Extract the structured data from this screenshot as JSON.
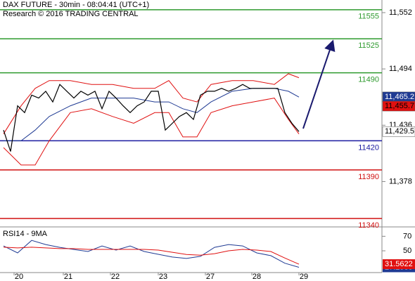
{
  "chart_data": {
    "type": "line",
    "title": "DAX FUTURE - 30min - 08:04:41 (UTC+1)",
    "subtitle": "Research © 2016 TRADING CENTRAL",
    "xlim": [
      -0.5,
      53.8
    ],
    "xticks": [
      {
        "value": 1.5,
        "label": "20"
      },
      {
        "value": 8.5,
        "label": "21"
      },
      {
        "value": 15.2,
        "label": "22"
      },
      {
        "value": 22,
        "label": "23"
      },
      {
        "value": 28.7,
        "label": "27"
      },
      {
        "value": 35.3,
        "label": "28"
      },
      {
        "value": 42,
        "label": "29"
      }
    ],
    "ylim": [
      11332,
      11565
    ],
    "yticks": [
      {
        "value": 11552,
        "label": "11,552"
      },
      {
        "value": 11494,
        "label": "11,494"
      },
      {
        "value": 11436,
        "label": "11,436"
      },
      {
        "value": 11378,
        "label": "11,378"
      }
    ],
    "price": {
      "color": "#000000",
      "x": [
        0,
        1,
        2,
        3,
        4,
        5,
        6,
        7,
        8,
        9,
        10,
        11,
        12,
        13,
        14,
        15,
        16,
        17,
        18,
        19,
        20,
        21,
        22,
        23,
        24,
        25,
        26,
        27,
        28,
        29,
        30,
        31,
        32,
        33,
        34,
        35,
        36,
        37,
        38,
        39,
        40,
        41,
        42
      ],
      "values": [
        11431,
        11409,
        11456,
        11449,
        11467,
        11464,
        11471,
        11460,
        11478,
        11471,
        11464,
        11471,
        11467,
        11471,
        11453,
        11471,
        11464,
        11456,
        11449,
        11456,
        11460,
        11471,
        11471,
        11431,
        11438,
        11445,
        11449,
        11442,
        11467,
        11471,
        11471,
        11474,
        11471,
        11474,
        11478,
        11474,
        11474,
        11474,
        11474,
        11474,
        11449,
        11438,
        11429.5
      ]
    },
    "indicators": {
      "x": [
        0,
        2.5,
        4.5,
        6.5,
        9.5,
        12.5,
        15.5,
        18.5,
        21.5,
        23.5,
        25.5,
        27.5,
        29.5,
        32.5,
        35.5,
        38.5,
        40.5,
        42
      ],
      "series": [
        {
          "color": "#e01010",
          "values": [
            11427,
            11456,
            11474,
            11482,
            11482,
            11478,
            11478,
            11474,
            11474,
            11482,
            11464,
            11460,
            11478,
            11482,
            11482,
            11478,
            11489,
            11485
          ]
        },
        {
          "color": "#e01010",
          "values": [
            11413,
            11395,
            11395,
            11420,
            11449,
            11453,
            11445,
            11438,
            11449,
            11449,
            11424,
            11424,
            11449,
            11456,
            11460,
            11464,
            11442,
            11427
          ]
        },
        {
          "color": "#1f3a93",
          "values": [
            11420,
            11420,
            11431,
            11445,
            11456,
            11464,
            11464,
            11464,
            11460,
            11460,
            11453,
            11449,
            11460,
            11471,
            11474,
            11474,
            11471,
            11465
          ]
        }
      ]
    },
    "levels": [
      {
        "value": 11555,
        "color": "#2e9a2e"
      },
      {
        "value": 11525,
        "color": "#2e9a2e"
      },
      {
        "value": 11490,
        "color": "#2e9a2e"
      },
      {
        "value": 11420,
        "color": "#1a1aa0"
      },
      {
        "value": 11390,
        "color": "#d01010"
      },
      {
        "value": 11340,
        "color": "#d01010"
      }
    ],
    "markers": [
      {
        "value": 11465.2,
        "label": "11,465.2",
        "color": "#1f3a93"
      },
      {
        "value": 11455.7,
        "label": "11,455.7",
        "color": "#e01010"
      },
      {
        "value": 11429.5,
        "label": "11,429.5",
        "color": "#ffffff"
      }
    ],
    "rsi": {
      "title": "RSI14 - 9MA",
      "ylim": [
        20,
        81
      ],
      "yticks": [
        70,
        50
      ],
      "x": [
        0,
        2,
        4,
        6,
        8,
        10,
        12,
        14,
        16,
        18,
        20,
        22,
        24,
        26,
        28,
        30,
        32,
        34,
        36,
        38,
        40,
        42
      ],
      "series": [
        {
          "color": "#1f3a93",
          "values": [
            56.7,
            47.1,
            64.3,
            58.6,
            54.8,
            51.9,
            49,
            56.7,
            51,
            56.7,
            49,
            45.2,
            41.4,
            39.5,
            42.4,
            54.8,
            58.6,
            56.7,
            47.1,
            43.3,
            32.9,
            27.2535
          ]
        },
        {
          "color": "#e01010",
          "values": [
            55,
            54,
            55,
            54,
            53,
            53,
            52,
            52,
            52,
            52,
            52,
            51,
            48,
            45,
            44,
            46,
            50,
            52,
            51,
            49,
            40,
            31.5622
          ]
        }
      ]
    }
  }
}
